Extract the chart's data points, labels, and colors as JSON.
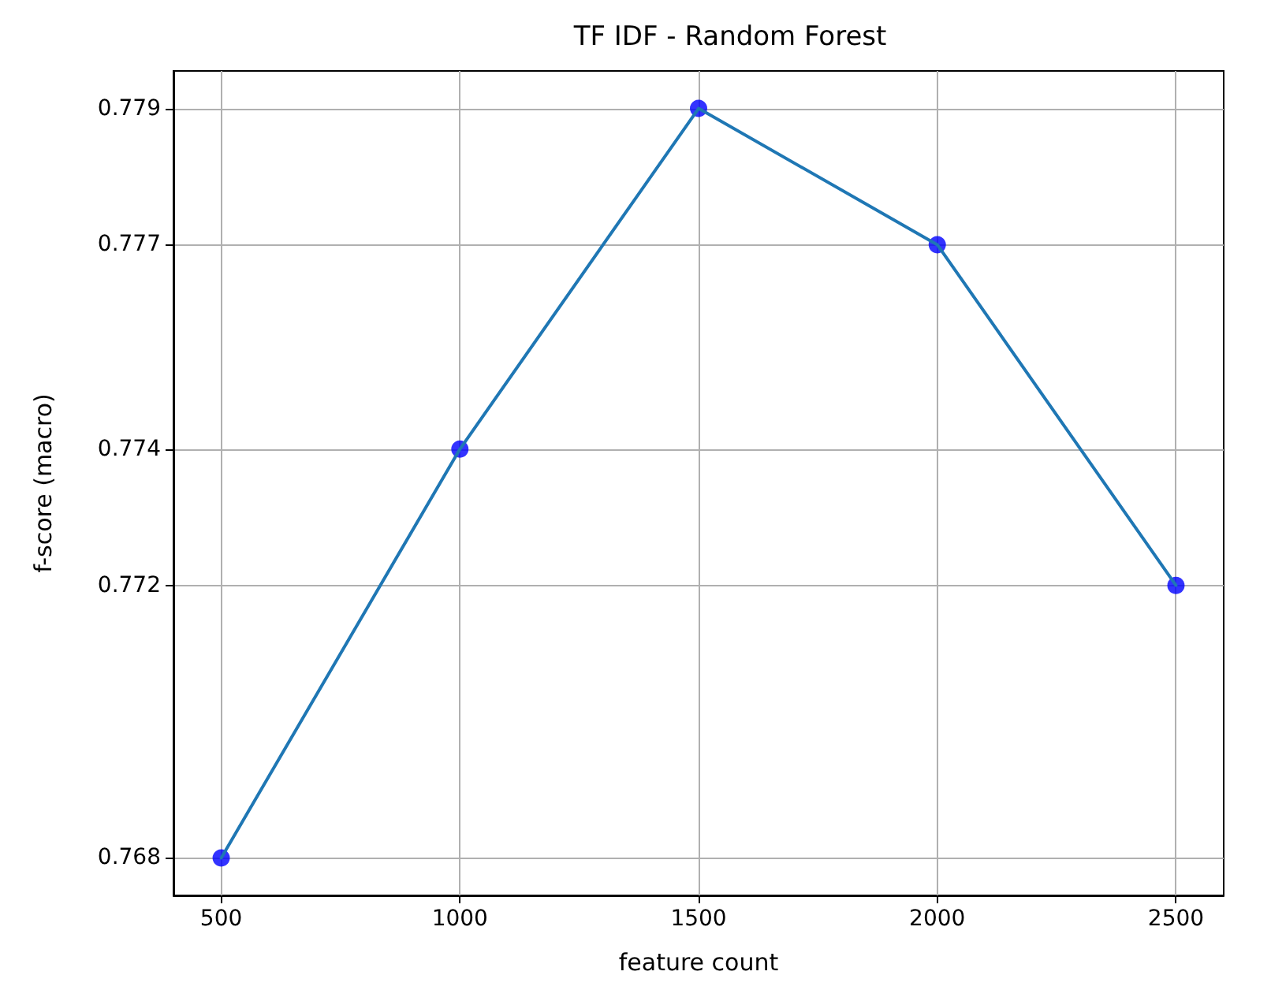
{
  "chart_data": {
    "type": "line",
    "title": "TF IDF - Random Forest",
    "xlabel": "feature count",
    "ylabel": "f-score (macro)",
    "x": [
      500,
      1000,
      1500,
      2000,
      2500
    ],
    "series": [
      {
        "color": "#1f77b4",
        "marker": "none",
        "values": [
          0.768,
          0.774,
          0.779,
          0.777,
          0.772
        ]
      },
      {
        "type": "scatter",
        "color": "#0000ff",
        "marker": "circle",
        "values": [
          0.768,
          0.774,
          0.779,
          0.777,
          0.772
        ]
      }
    ],
    "xlim": [
      400,
      2600
    ],
    "xticks": [
      500,
      1000,
      1500,
      2000,
      2500
    ],
    "ylim": [
      0.76745,
      0.77955
    ],
    "yticks": [
      0.768,
      0.772,
      0.774,
      0.777,
      0.779
    ],
    "grid": true
  }
}
